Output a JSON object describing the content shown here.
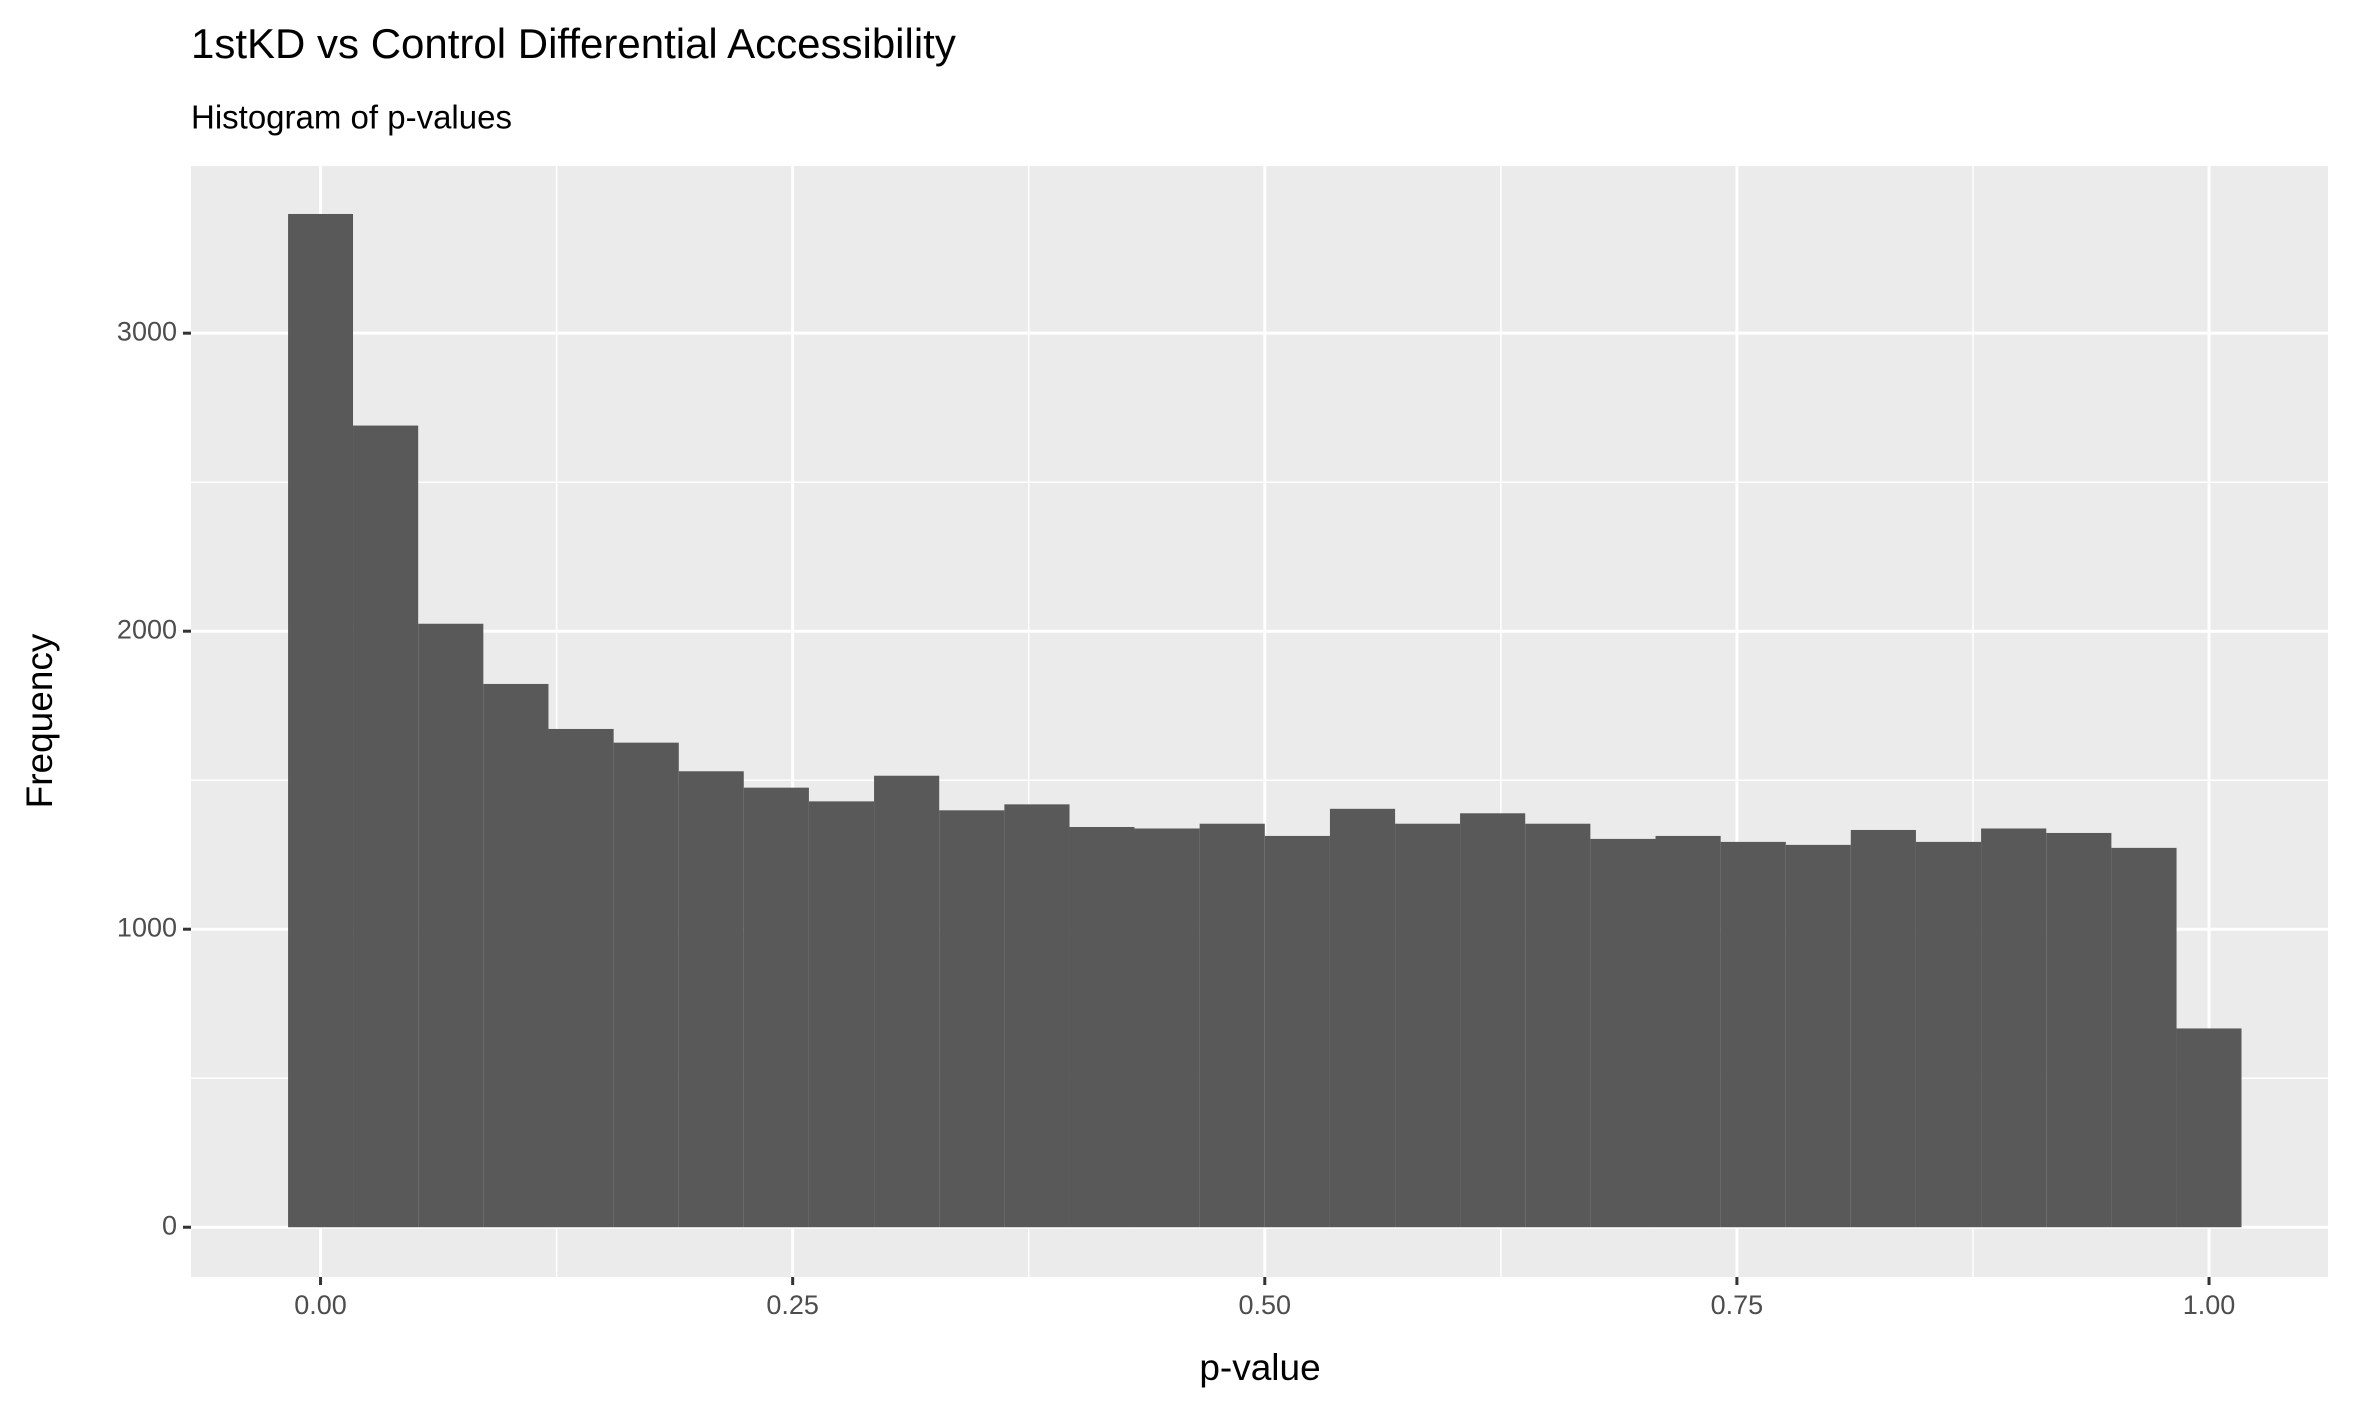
{
  "chart_data": {
    "type": "histogram",
    "title": "1stKD vs Control Differential Accessibility",
    "subtitle": "Histogram of p-values",
    "x_label": "p-value",
    "y_label": "Frequency",
    "bins": [
      -0.0172,
      0.0172,
      0.0517,
      0.0862,
      0.1207,
      0.1552,
      0.1897,
      0.2241,
      0.2586,
      0.2931,
      0.3276,
      0.3621,
      0.3966,
      0.431,
      0.4655,
      0.5,
      0.5345,
      0.569,
      0.6034,
      0.6379,
      0.6724,
      0.7069,
      0.7414,
      0.7759,
      0.8103,
      0.8448,
      0.8793,
      0.9138,
      0.9483,
      0.9828,
      1.0172
    ],
    "values": [
      3400,
      2690,
      2025,
      1823,
      1672,
      1626,
      1530,
      1475,
      1429,
      1515,
      1399,
      1419,
      1343,
      1338,
      1354,
      1313,
      1404,
      1354,
      1389,
      1354,
      1303,
      1313,
      1293,
      1283,
      1333,
      1293,
      1338,
      1323,
      1273,
      667
    ],
    "color": "#595959",
    "xlim": [
      -0.0686,
      1.063
    ],
    "ylim": [
      -167,
      3561
    ],
    "xticks": [
      {
        "value": 0,
        "label": "0.00"
      },
      {
        "value": 0.25,
        "label": "0.25"
      },
      {
        "value": 0.5,
        "label": "0.50"
      },
      {
        "value": 0.75,
        "label": "0.75"
      },
      {
        "value": 1,
        "label": "1.00"
      }
    ],
    "yticks": [
      0,
      1000,
      2000,
      3000
    ],
    "grid": true
  }
}
